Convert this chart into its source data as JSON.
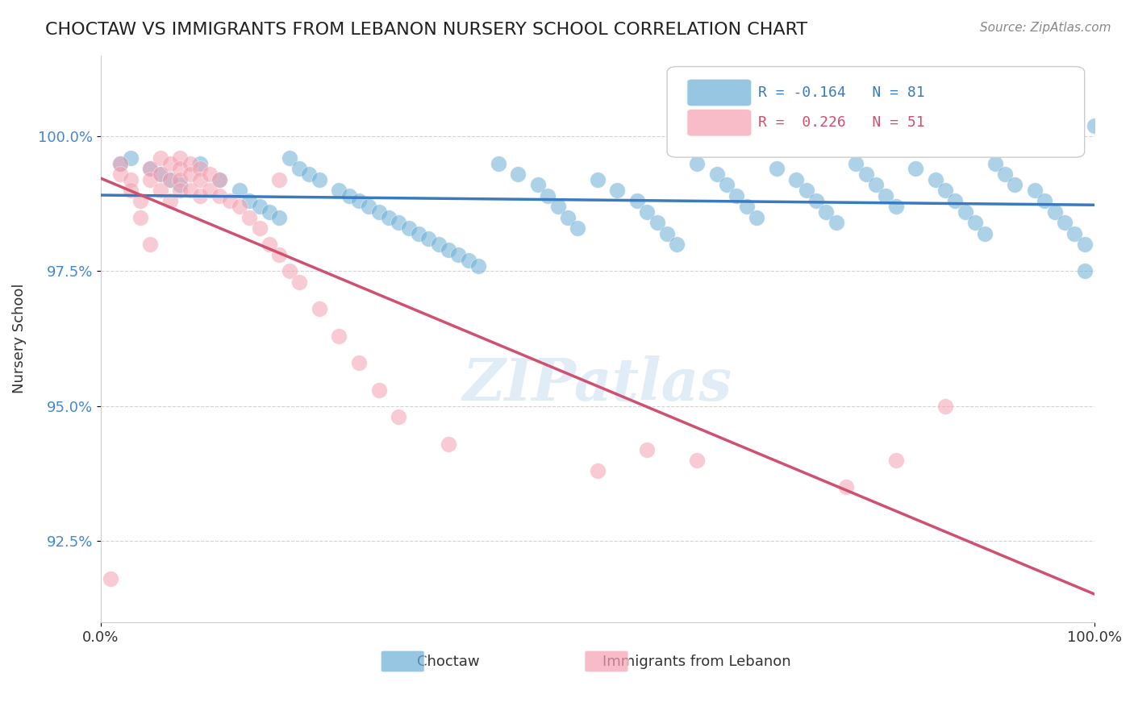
{
  "title": "CHOCTAW VS IMMIGRANTS FROM LEBANON NURSERY SCHOOL CORRELATION CHART",
  "source_text": "Source: ZipAtlas.com",
  "xlabel": "",
  "ylabel": "Nursery School",
  "choctaw_legend": "Choctaw",
  "lebanon_legend": "Immigrants from Lebanon",
  "xmin": 0.0,
  "xmax": 100.0,
  "ymin": 91.0,
  "ymax": 101.5,
  "yticks": [
    92.5,
    95.0,
    97.5,
    100.0
  ],
  "xticks": [
    0.0,
    100.0
  ],
  "grid_color": "#c8c8c8",
  "blue_color": "#6baed6",
  "pink_color": "#f4a0b0",
  "blue_line_color": "#3a7abf",
  "pink_line_color": "#d05070",
  "watermark": "ZIPatlas",
  "blue_R": -0.164,
  "blue_N": 81,
  "pink_R": 0.226,
  "pink_N": 51,
  "blue_scatter": {
    "x": [
      2,
      3,
      5,
      6,
      7,
      8,
      10,
      12,
      14,
      15,
      16,
      17,
      18,
      19,
      20,
      21,
      22,
      24,
      25,
      26,
      27,
      28,
      29,
      30,
      31,
      32,
      33,
      34,
      35,
      36,
      37,
      38,
      40,
      42,
      44,
      45,
      46,
      47,
      48,
      50,
      52,
      54,
      55,
      56,
      57,
      58,
      60,
      62,
      63,
      64,
      65,
      66,
      68,
      70,
      71,
      72,
      73,
      74,
      76,
      77,
      78,
      79,
      80,
      82,
      84,
      85,
      86,
      87,
      88,
      89,
      90,
      91,
      92,
      94,
      95,
      96,
      97,
      98,
      99,
      100,
      99
    ],
    "y": [
      99.5,
      99.6,
      99.4,
      99.3,
      99.2,
      99.1,
      99.5,
      99.2,
      99.0,
      98.8,
      98.7,
      98.6,
      98.5,
      99.6,
      99.4,
      99.3,
      99.2,
      99.0,
      98.9,
      98.8,
      98.7,
      98.6,
      98.5,
      98.4,
      98.3,
      98.2,
      98.1,
      98.0,
      97.9,
      97.8,
      97.7,
      97.6,
      99.5,
      99.3,
      99.1,
      98.9,
      98.7,
      98.5,
      98.3,
      99.2,
      99.0,
      98.8,
      98.6,
      98.4,
      98.2,
      98.0,
      99.5,
      99.3,
      99.1,
      98.9,
      98.7,
      98.5,
      99.4,
      99.2,
      99.0,
      98.8,
      98.6,
      98.4,
      99.5,
      99.3,
      99.1,
      98.9,
      98.7,
      99.4,
      99.2,
      99.0,
      98.8,
      98.6,
      98.4,
      98.2,
      99.5,
      99.3,
      99.1,
      99.0,
      98.8,
      98.6,
      98.4,
      98.2,
      98.0,
      100.2,
      97.5
    ]
  },
  "pink_scatter": {
    "x": [
      1,
      2,
      2,
      3,
      3,
      4,
      4,
      5,
      5,
      5,
      6,
      6,
      6,
      7,
      7,
      7,
      8,
      8,
      8,
      8,
      9,
      9,
      9,
      10,
      10,
      10,
      11,
      11,
      12,
      12,
      13,
      14,
      15,
      16,
      17,
      18,
      18,
      19,
      20,
      22,
      24,
      26,
      28,
      30,
      35,
      50,
      55,
      60,
      75,
      80,
      85
    ],
    "y": [
      91.8,
      99.5,
      99.3,
      99.2,
      99.0,
      98.8,
      98.5,
      99.4,
      99.2,
      98.0,
      99.6,
      99.3,
      99.0,
      99.5,
      99.2,
      98.8,
      99.6,
      99.4,
      99.2,
      99.0,
      99.5,
      99.3,
      99.0,
      99.4,
      99.2,
      98.9,
      99.3,
      99.0,
      99.2,
      98.9,
      98.8,
      98.7,
      98.5,
      98.3,
      98.0,
      97.8,
      99.2,
      97.5,
      97.3,
      96.8,
      96.3,
      95.8,
      95.3,
      94.8,
      94.3,
      93.8,
      94.2,
      94.0,
      93.5,
      94.0,
      95.0
    ]
  }
}
